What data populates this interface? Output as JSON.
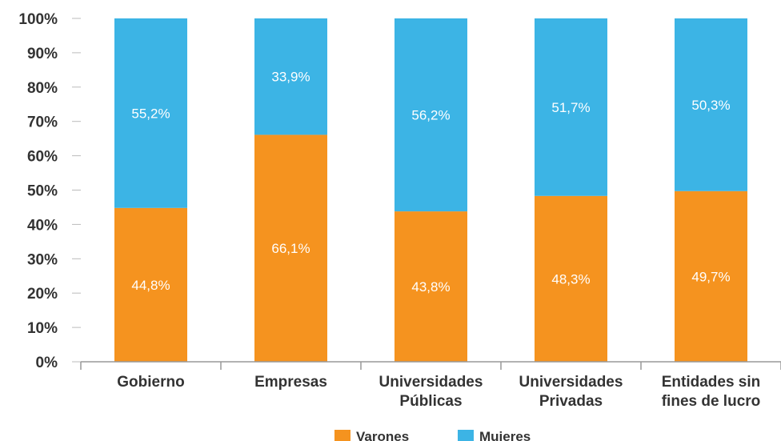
{
  "chart_data": {
    "type": "bar",
    "stacked": true,
    "categories": [
      [
        "Gobierno"
      ],
      [
        "Empresas"
      ],
      [
        "Universidades",
        "Públicas"
      ],
      [
        "Universidades",
        "Privadas"
      ],
      [
        "Entidades sin",
        "fines de lucro"
      ]
    ],
    "series": [
      {
        "name": "Varones",
        "color": "#f5931f",
        "values": [
          44.8,
          66.1,
          43.8,
          48.3,
          49.7
        ],
        "labels": [
          "44,8%",
          "66,1%",
          "43,8%",
          "48,3%",
          "49,7%"
        ]
      },
      {
        "name": "Mujeres",
        "color": "#3cb4e5",
        "values": [
          55.2,
          33.9,
          56.2,
          51.7,
          50.3
        ],
        "labels": [
          "55,2%",
          "33,9%",
          "56,2%",
          "51,7%",
          "50,3%"
        ]
      }
    ],
    "y_ticks": [
      "0%",
      "10%",
      "20%",
      "30%",
      "40%",
      "50%",
      "60%",
      "70%",
      "80%",
      "90%",
      "100%"
    ],
    "ylim": [
      0,
      100
    ],
    "grid": false,
    "legend_position": "bottom-center",
    "title": "",
    "xlabel": "",
    "ylabel": ""
  }
}
